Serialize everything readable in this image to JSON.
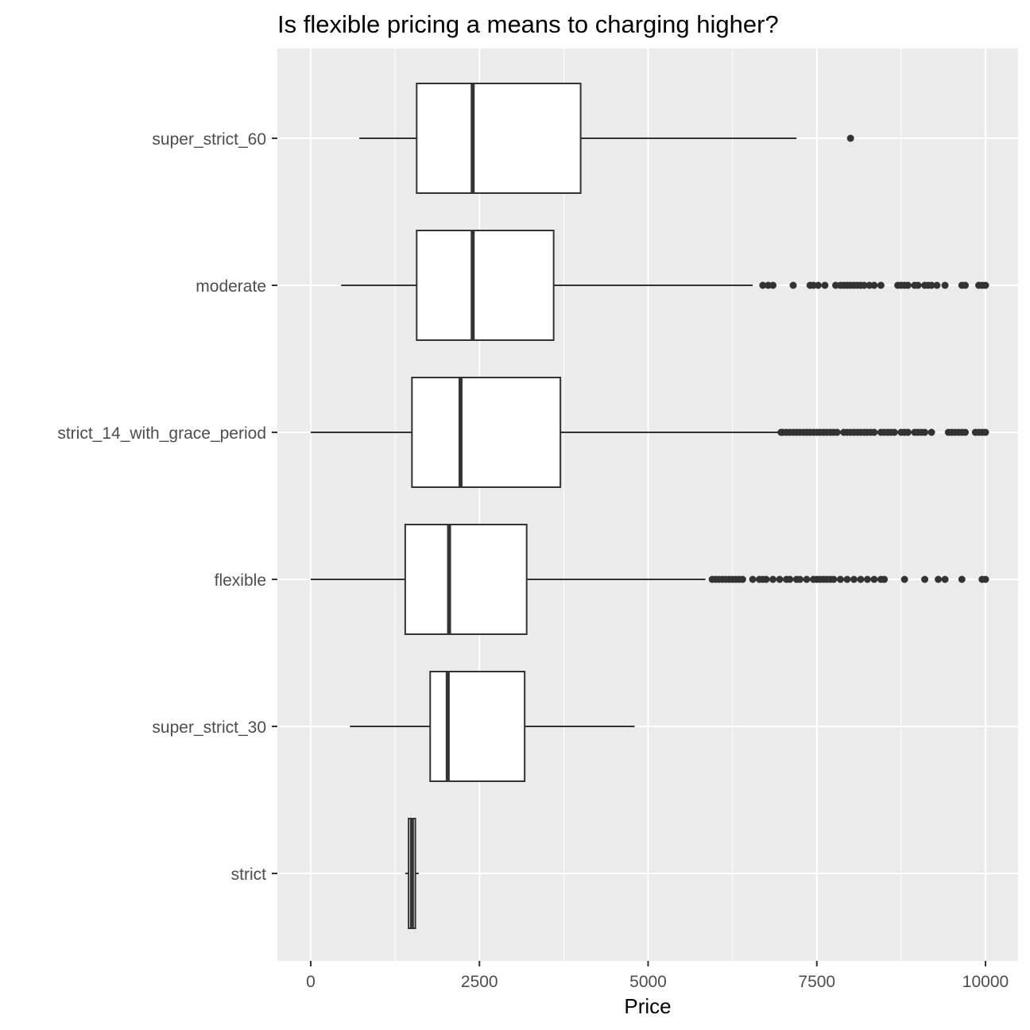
{
  "chart_data": {
    "type": "boxplot",
    "orientation": "horizontal",
    "title": "Is flexible pricing a means to charging higher?",
    "xlabel": "Price",
    "ylabel": "",
    "xlim": [
      -250,
      10250
    ],
    "x_ticks": [
      0,
      2500,
      5000,
      7500,
      10000
    ],
    "x_tick_labels": [
      "0",
      "2500",
      "5000",
      "7500",
      "10000"
    ],
    "grid": true,
    "categories": [
      "super_strict_60",
      "moderate",
      "strict_14_with_grace_period",
      "flexible",
      "super_strict_30",
      "strict"
    ],
    "boxes": [
      {
        "category": "super_strict_60",
        "whisker_low": 720,
        "q1": 1570,
        "median": 2400,
        "q3": 4000,
        "whisker_high": 7200,
        "outliers": [
          8000
        ]
      },
      {
        "category": "moderate",
        "whisker_low": 450,
        "q1": 1570,
        "median": 2400,
        "q3": 3600,
        "whisker_high": 6550,
        "outliers": [
          6700,
          6780,
          6850,
          7150,
          7400,
          7450,
          7520,
          7620,
          7780,
          7850,
          7900,
          7950,
          8000,
          8050,
          8100,
          8150,
          8200,
          8280,
          8350,
          8450,
          8700,
          8750,
          8800,
          8850,
          8950,
          9000,
          9100,
          9150,
          9200,
          9280,
          9400,
          9650,
          9700,
          9900,
          9950,
          10000
        ]
      },
      {
        "category": "strict_14_with_grace_period",
        "whisker_low": 0,
        "q1": 1500,
        "median": 2220,
        "q3": 3700,
        "whisker_high": 6950,
        "outliers": [
          6970,
          7000,
          7050,
          7100,
          7150,
          7200,
          7250,
          7300,
          7350,
          7400,
          7450,
          7500,
          7550,
          7600,
          7650,
          7700,
          7750,
          7800,
          7900,
          7950,
          8000,
          8050,
          8100,
          8150,
          8200,
          8250,
          8300,
          8350,
          8450,
          8500,
          8550,
          8600,
          8650,
          8750,
          8800,
          8850,
          8950,
          9000,
          9050,
          9100,
          9200,
          9450,
          9500,
          9550,
          9600,
          9650,
          9700,
          9850,
          9900,
          9950,
          10000
        ]
      },
      {
        "category": "flexible",
        "whisker_low": 0,
        "q1": 1400,
        "median": 2050,
        "q3": 3200,
        "whisker_high": 5850,
        "outliers": [
          5950,
          6000,
          6050,
          6100,
          6150,
          6200,
          6250,
          6300,
          6350,
          6400,
          6550,
          6650,
          6700,
          6750,
          6850,
          6950,
          7050,
          7100,
          7200,
          7250,
          7350,
          7450,
          7500,
          7550,
          7600,
          7650,
          7700,
          7750,
          7850,
          7950,
          8050,
          8150,
          8250,
          8350,
          8450,
          8500,
          8800,
          9100,
          9300,
          9400,
          9650,
          9950,
          10000
        ]
      },
      {
        "category": "super_strict_30",
        "whisker_low": 580,
        "q1": 1770,
        "median": 2030,
        "q3": 3170,
        "whisker_high": 4800,
        "outliers": []
      },
      {
        "category": "strict",
        "whisker_low": 1400,
        "q1": 1450,
        "median": 1500,
        "q3": 1550,
        "whisker_high": 1600,
        "outliers": []
      }
    ]
  }
}
